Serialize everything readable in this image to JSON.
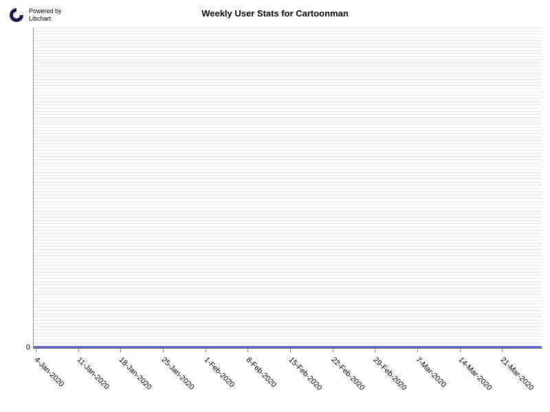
{
  "chart": {
    "type": "line",
    "title": "Weekly User Stats for Cartoonman",
    "title_fontsize": 13,
    "title_fontweight": "bold",
    "background_color": "#ffffff",
    "plot_background": "#ffffff",
    "grid_color": "#e8e8e8",
    "axis_color": "#888888",
    "line_color": "#6060c0",
    "line_width": 3,
    "label_fontsize": 11,
    "label_color": "#000000",
    "x_labels": [
      "4-Jan-2020",
      "11-Jan-2020",
      "18-Jan-2020",
      "25-Jan-2020",
      "1-Feb-2020",
      "8-Feb-2020",
      "15-Feb-2020",
      "22-Feb-2020",
      "29-Feb-2020",
      "7-Mar-2020",
      "14-Mar-2020",
      "21-Mar-2020"
    ],
    "y_values": [
      0,
      0,
      0,
      0,
      0,
      0,
      0,
      0,
      0,
      0,
      0,
      0
    ],
    "y_tick_labels": [
      "0"
    ],
    "y_tick_positions": [
      0
    ],
    "ylim": [
      0,
      1
    ],
    "gridline_count": 100,
    "x_label_rotation": 45
  },
  "branding": {
    "powered_by_line1": "Powered by",
    "powered_by_line2": "Libchart",
    "logo_color": "#1a1a4a",
    "text_fontsize": 9
  }
}
